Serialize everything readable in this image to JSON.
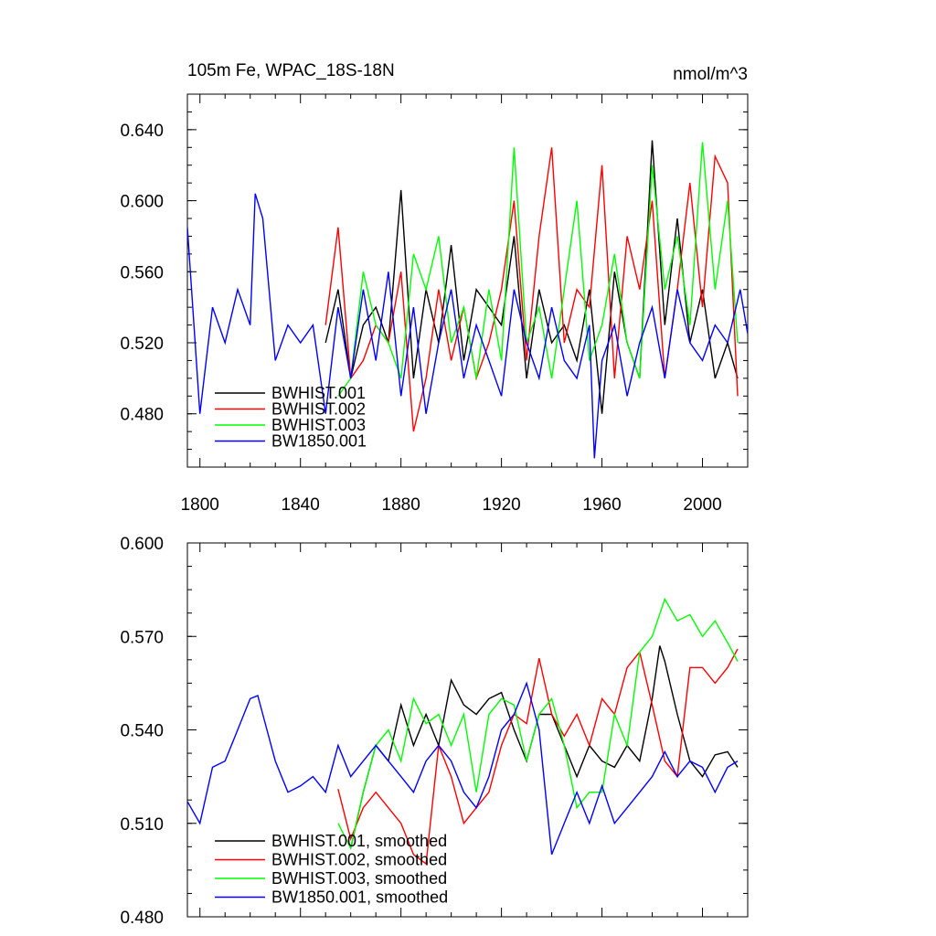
{
  "chart_data": [
    {
      "type": "line",
      "title": "105m Fe, WPAC_18S-18N",
      "units": "nmol/m^3",
      "xlabel": "",
      "ylabel": "",
      "xlim": [
        1795,
        2018
      ],
      "ylim": [
        0.45,
        0.66
      ],
      "x_ticks": [
        1800,
        1840,
        1880,
        1920,
        1960,
        2000
      ],
      "x_tick_labels": [
        "1800",
        "1840",
        "1880",
        "1920",
        "1960",
        "2000"
      ],
      "y_ticks": [
        0.48,
        0.52,
        0.56,
        0.6,
        0.64
      ],
      "y_tick_labels": [
        "0.480",
        "0.520",
        "0.560",
        "0.600",
        "0.640"
      ],
      "legend_position": "bottom-left",
      "series": [
        {
          "name": "BWHIST.001",
          "color": "#000000",
          "x": [
            1850,
            1855,
            1860,
            1865,
            1870,
            1875,
            1880,
            1885,
            1890,
            1895,
            1900,
            1905,
            1910,
            1915,
            1920,
            1925,
            1930,
            1935,
            1940,
            1945,
            1950,
            1955,
            1960,
            1965,
            1970,
            1975,
            1980,
            1985,
            1990,
            1995,
            2000,
            2005,
            2010,
            2014
          ],
          "y": [
            0.52,
            0.55,
            0.5,
            0.53,
            0.54,
            0.52,
            0.606,
            0.5,
            0.55,
            0.52,
            0.575,
            0.51,
            0.55,
            0.54,
            0.53,
            0.58,
            0.5,
            0.55,
            0.52,
            0.53,
            0.51,
            0.55,
            0.48,
            0.56,
            0.52,
            0.5,
            0.634,
            0.53,
            0.59,
            0.52,
            0.55,
            0.5,
            0.52,
            0.5
          ]
        },
        {
          "name": "BWHIST.002",
          "color": "#ff0000",
          "x": [
            1850,
            1855,
            1860,
            1865,
            1870,
            1875,
            1880,
            1885,
            1890,
            1895,
            1900,
            1905,
            1910,
            1915,
            1920,
            1925,
            1930,
            1935,
            1940,
            1945,
            1950,
            1955,
            1960,
            1965,
            1970,
            1975,
            1980,
            1985,
            1990,
            1995,
            2000,
            2005,
            2010,
            2014
          ],
          "y": [
            0.53,
            0.585,
            0.5,
            0.51,
            0.53,
            0.52,
            0.56,
            0.47,
            0.5,
            0.55,
            0.51,
            0.54,
            0.5,
            0.52,
            0.55,
            0.6,
            0.51,
            0.58,
            0.63,
            0.52,
            0.55,
            0.54,
            0.62,
            0.5,
            0.58,
            0.55,
            0.6,
            0.5,
            0.55,
            0.61,
            0.54,
            0.625,
            0.61,
            0.49
          ]
        },
        {
          "name": "BWHIST.003",
          "color": "#00ff00",
          "x": [
            1855,
            1860,
            1865,
            1870,
            1875,
            1880,
            1885,
            1890,
            1895,
            1900,
            1905,
            1910,
            1915,
            1920,
            1925,
            1930,
            1935,
            1940,
            1945,
            1950,
            1955,
            1960,
            1965,
            1970,
            1975,
            1980,
            1985,
            1990,
            1995,
            2000,
            2005,
            2010,
            2014
          ],
          "y": [
            0.49,
            0.5,
            0.56,
            0.53,
            0.52,
            0.5,
            0.57,
            0.55,
            0.58,
            0.52,
            0.54,
            0.5,
            0.55,
            0.51,
            0.63,
            0.52,
            0.54,
            0.5,
            0.55,
            0.6,
            0.51,
            0.53,
            0.57,
            0.52,
            0.5,
            0.62,
            0.55,
            0.58,
            0.53,
            0.633,
            0.55,
            0.6,
            0.52
          ]
        },
        {
          "name": "BW1850.001",
          "color": "#0000ff",
          "x": [
            1795,
            1800,
            1805,
            1810,
            1815,
            1820,
            1822,
            1825,
            1830,
            1835,
            1840,
            1845,
            1850,
            1855,
            1860,
            1865,
            1870,
            1875,
            1880,
            1885,
            1890,
            1895,
            1900,
            1905,
            1910,
            1915,
            1920,
            1925,
            1930,
            1935,
            1940,
            1945,
            1950,
            1955,
            1957,
            1960,
            1965,
            1970,
            1975,
            1980,
            1985,
            1990,
            1995,
            2000,
            2005,
            2010,
            2015,
            2018
          ],
          "y": [
            0.585,
            0.48,
            0.54,
            0.52,
            0.55,
            0.53,
            0.604,
            0.59,
            0.51,
            0.53,
            0.52,
            0.53,
            0.48,
            0.54,
            0.5,
            0.55,
            0.51,
            0.56,
            0.49,
            0.54,
            0.48,
            0.52,
            0.55,
            0.5,
            0.53,
            0.51,
            0.49,
            0.55,
            0.52,
            0.5,
            0.54,
            0.51,
            0.5,
            0.53,
            0.455,
            0.51,
            0.53,
            0.49,
            0.52,
            0.54,
            0.5,
            0.55,
            0.52,
            0.51,
            0.53,
            0.52,
            0.55,
            0.525
          ]
        }
      ]
    },
    {
      "type": "line",
      "title": "",
      "xlabel": "",
      "ylabel": "",
      "xlim": [
        1795,
        2018
      ],
      "ylim": [
        0.48,
        0.6
      ],
      "x_ticks": [
        1800,
        1840,
        1880,
        1920,
        1960,
        2000
      ],
      "y_ticks": [
        0.48,
        0.51,
        0.54,
        0.57,
        0.6
      ],
      "y_tick_labels": [
        "0.480",
        "0.510",
        "0.540",
        "0.570",
        "0.600"
      ],
      "legend_position": "bottom-left",
      "series": [
        {
          "name": "BWHIST.001, smoothed",
          "color": "#000000",
          "x": [
            1860,
            1865,
            1870,
            1875,
            1880,
            1885,
            1890,
            1895,
            1900,
            1905,
            1910,
            1915,
            1920,
            1925,
            1930,
            1935,
            1940,
            1945,
            1950,
            1955,
            1960,
            1965,
            1970,
            1975,
            1980,
            1983,
            1985,
            1990,
            1995,
            2000,
            2005,
            2010,
            2014
          ],
          "y": [
            0.502,
            0.52,
            0.535,
            0.53,
            0.548,
            0.535,
            0.545,
            0.535,
            0.556,
            0.548,
            0.545,
            0.55,
            0.552,
            0.54,
            0.53,
            0.545,
            0.545,
            0.535,
            0.525,
            0.535,
            0.53,
            0.528,
            0.535,
            0.53,
            0.55,
            0.567,
            0.562,
            0.545,
            0.53,
            0.525,
            0.532,
            0.533,
            0.528
          ]
        },
        {
          "name": "BWHIST.002, smoothed",
          "color": "#ff0000",
          "x": [
            1855,
            1860,
            1865,
            1870,
            1875,
            1880,
            1885,
            1890,
            1895,
            1900,
            1905,
            1910,
            1915,
            1920,
            1925,
            1930,
            1935,
            1940,
            1945,
            1950,
            1955,
            1960,
            1965,
            1970,
            1975,
            1980,
            1985,
            1990,
            1995,
            2000,
            2005,
            2010,
            2014
          ],
          "y": [
            0.521,
            0.505,
            0.515,
            0.52,
            0.515,
            0.51,
            0.5,
            0.497,
            0.535,
            0.525,
            0.51,
            0.515,
            0.52,
            0.535,
            0.545,
            0.542,
            0.563,
            0.545,
            0.538,
            0.545,
            0.535,
            0.55,
            0.545,
            0.56,
            0.565,
            0.548,
            0.53,
            0.525,
            0.56,
            0.56,
            0.555,
            0.56,
            0.566
          ]
        },
        {
          "name": "BWHIST.003, smoothed",
          "color": "#00ff00",
          "x": [
            1855,
            1860,
            1865,
            1870,
            1875,
            1880,
            1885,
            1890,
            1895,
            1900,
            1905,
            1910,
            1915,
            1920,
            1925,
            1930,
            1935,
            1940,
            1945,
            1950,
            1955,
            1960,
            1965,
            1970,
            1975,
            1980,
            1985,
            1990,
            1995,
            2000,
            2005,
            2010,
            2014
          ],
          "y": [
            0.51,
            0.502,
            0.52,
            0.535,
            0.54,
            0.53,
            0.55,
            0.542,
            0.545,
            0.535,
            0.545,
            0.52,
            0.545,
            0.55,
            0.548,
            0.53,
            0.545,
            0.55,
            0.535,
            0.515,
            0.52,
            0.52,
            0.545,
            0.535,
            0.565,
            0.57,
            0.582,
            0.575,
            0.577,
            0.57,
            0.575,
            0.568,
            0.562
          ]
        },
        {
          "name": "BW1850.001, smoothed",
          "color": "#0000ff",
          "x": [
            1795,
            1800,
            1805,
            1810,
            1815,
            1820,
            1823,
            1825,
            1830,
            1835,
            1840,
            1845,
            1850,
            1855,
            1860,
            1865,
            1870,
            1875,
            1880,
            1885,
            1890,
            1895,
            1900,
            1905,
            1910,
            1915,
            1920,
            1925,
            1930,
            1935,
            1940,
            1945,
            1950,
            1955,
            1960,
            1965,
            1970,
            1975,
            1980,
            1985,
            1990,
            1995,
            2000,
            2005,
            2010,
            2014
          ],
          "y": [
            0.517,
            0.51,
            0.528,
            0.53,
            0.54,
            0.55,
            0.551,
            0.545,
            0.53,
            0.52,
            0.522,
            0.525,
            0.52,
            0.535,
            0.525,
            0.53,
            0.535,
            0.53,
            0.525,
            0.52,
            0.53,
            0.535,
            0.53,
            0.52,
            0.515,
            0.525,
            0.54,
            0.545,
            0.555,
            0.54,
            0.5,
            0.51,
            0.52,
            0.51,
            0.522,
            0.51,
            0.515,
            0.52,
            0.525,
            0.533,
            0.525,
            0.53,
            0.528,
            0.52,
            0.528,
            0.53
          ]
        }
      ]
    }
  ]
}
